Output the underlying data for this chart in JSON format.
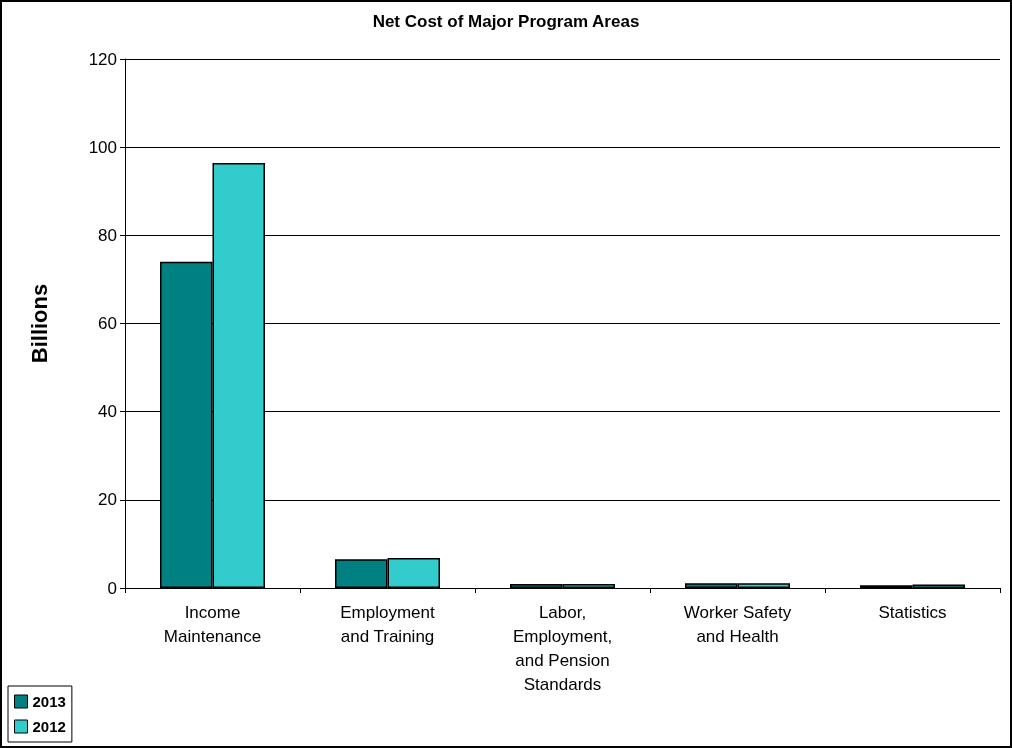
{
  "chart_data": {
    "type": "bar",
    "title": "Net Cost of Major Program Areas",
    "ylabel": "Billions",
    "categories": [
      "Income\nMaintenance",
      "Employment\nand Training",
      "Labor,\nEmployment,\nand Pension\nStandards",
      "Worker Safety\nand Health",
      "Statistics"
    ],
    "series": [
      {
        "name": "2013",
        "color": "#008080",
        "values": [
          74,
          6.5,
          0.9,
          1.1,
          0.6
        ]
      },
      {
        "name": "2012",
        "color": "#33cccc",
        "values": [
          96.4,
          6.8,
          0.9,
          1.1,
          0.8
        ]
      }
    ],
    "ylim": [
      0,
      120
    ],
    "yticks": [
      0,
      20,
      40,
      60,
      80,
      100,
      120
    ],
    "grid": "y",
    "legend": "bottom left"
  }
}
